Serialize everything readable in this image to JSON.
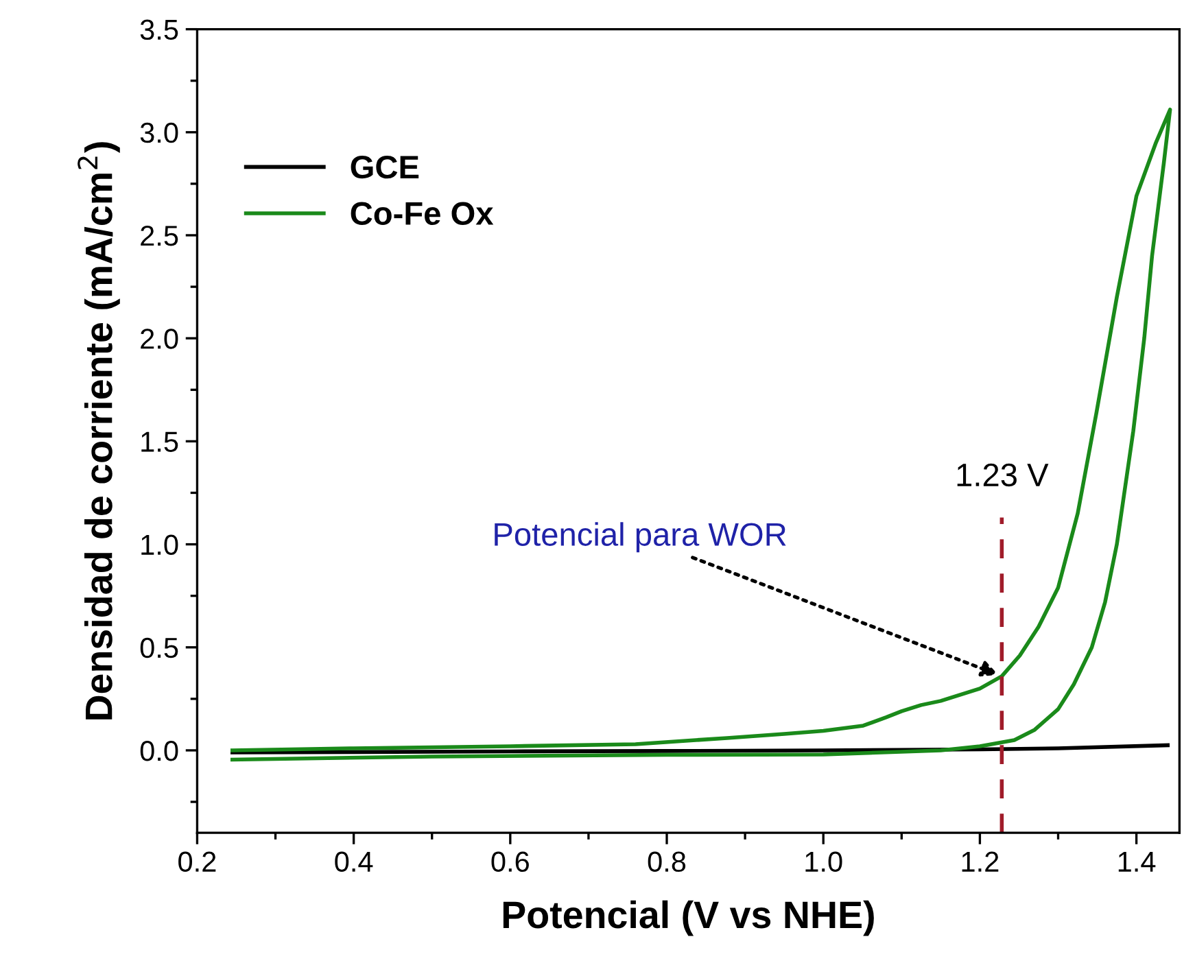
{
  "chart_data": {
    "type": "line",
    "xlabel": "Potencial (V vs NHE)",
    "ylabel": "Densidad de corriente (mA/cm$^{2}$)",
    "xlim": [
      0.2,
      1.455
    ],
    "ylim": [
      -0.4,
      3.5
    ],
    "xticks": [
      {
        "value": 0.2,
        "label": "0.2"
      },
      {
        "value": 0.4,
        "label": "0.4"
      },
      {
        "value": 0.6,
        "label": "0.6"
      },
      {
        "value": 0.8,
        "label": "0.8"
      },
      {
        "value": 1.0,
        "label": "1.0"
      },
      {
        "value": 1.2,
        "label": "1.2"
      },
      {
        "value": 1.4,
        "label": "1.4"
      }
    ],
    "yticks": [
      {
        "value": 0,
        "label": "0.0"
      },
      {
        "value": 0.5,
        "label": "0.5"
      },
      {
        "value": 1.0,
        "label": "1.0"
      },
      {
        "value": 1.5,
        "label": "1.5"
      },
      {
        "value": 2.0,
        "label": "2.0"
      },
      {
        "value": 2.5,
        "label": "2.5"
      },
      {
        "value": 3.0,
        "label": "3.0"
      },
      {
        "value": 3.5,
        "label": "3.5"
      }
    ],
    "series": [
      {
        "name": "GCE",
        "color": "#000000",
        "x": [
          0.245,
          0.4,
          0.6,
          0.8,
          1.0,
          1.1,
          1.2,
          1.3,
          1.44
        ],
        "values": [
          -0.01,
          -0.008,
          -0.005,
          -0.003,
          0.0,
          0.002,
          0.005,
          0.01,
          0.025
        ]
      },
      {
        "name": "Co-Fe Ox",
        "color": "#1a8a1a",
        "x": [
          0.245,
          0.4,
          0.6,
          0.76,
          0.877,
          0.95,
          1.0,
          1.051,
          1.08,
          1.1,
          1.125,
          1.15,
          1.2,
          1.228,
          1.251,
          1.275,
          1.3,
          1.325,
          1.349,
          1.375,
          1.4,
          1.425,
          1.443,
          1.435,
          1.42,
          1.41,
          1.396,
          1.375,
          1.36,
          1.343,
          1.32,
          1.3,
          1.27,
          1.244,
          1.2,
          1.15,
          1.0,
          0.8,
          0.5,
          0.245
        ],
        "values": [
          0.0,
          0.01,
          0.02,
          0.03,
          0.06,
          0.08,
          0.095,
          0.12,
          0.16,
          0.19,
          0.22,
          0.24,
          0.3,
          0.36,
          0.46,
          0.6,
          0.79,
          1.15,
          1.64,
          2.2,
          2.69,
          2.95,
          3.11,
          2.85,
          2.4,
          2.0,
          1.55,
          1.0,
          0.72,
          0.5,
          0.32,
          0.2,
          0.1,
          0.05,
          0.02,
          0.0,
          -0.02,
          -0.022,
          -0.03,
          -0.045
        ]
      }
    ],
    "ref_lines": [
      {
        "axis": "x",
        "value": 1.228,
        "label": "1.23 V",
        "color": "#a01c2a",
        "line_style": "dashed"
      }
    ],
    "annotations": [
      {
        "text": "Potencial para WOR",
        "x": 1.228,
        "y": 0.36
      }
    ],
    "legend": "top left",
    "grid": false,
    "marker": "none",
    "line_style": "solid"
  }
}
